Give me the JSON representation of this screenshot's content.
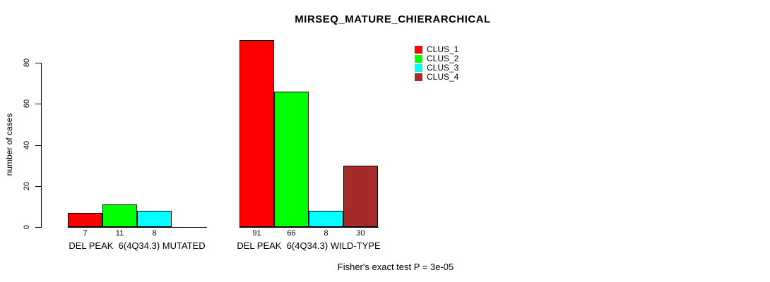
{
  "title": "MIRSEQ_MATURE_CHIERARCHICAL",
  "chart_data": {
    "type": "bar",
    "title": "MIRSEQ_MATURE_CHIERARCHICAL",
    "xlabel": "",
    "ylabel": "number of cases",
    "ylim": [
      0,
      91
    ],
    "yticks": [
      0,
      20,
      40,
      60,
      80
    ],
    "grid": false,
    "legend_position": "top-right-inside",
    "legend_entries": [
      "CLUS_1",
      "CLUS_2",
      "CLUS_3",
      "CLUS_4"
    ],
    "categories": [
      "DEL PEAK  6(4Q34.3) MUTATED",
      "DEL PEAK  6(4Q34.3) WILD-TYPE"
    ],
    "series": [
      {
        "name": "CLUS_1",
        "color": "#FF0000",
        "values": [
          7,
          91
        ]
      },
      {
        "name": "CLUS_2",
        "color": "#00FF00",
        "values": [
          11,
          66
        ]
      },
      {
        "name": "CLUS_3",
        "color": "#00FFFF",
        "values": [
          8,
          8
        ]
      },
      {
        "name": "CLUS_4",
        "color": "#A52A2A",
        "values": [
          0,
          30
        ]
      }
    ],
    "bar_value_labels_shown": true,
    "annotation": "Fisher's exact test P = 3e-05"
  }
}
